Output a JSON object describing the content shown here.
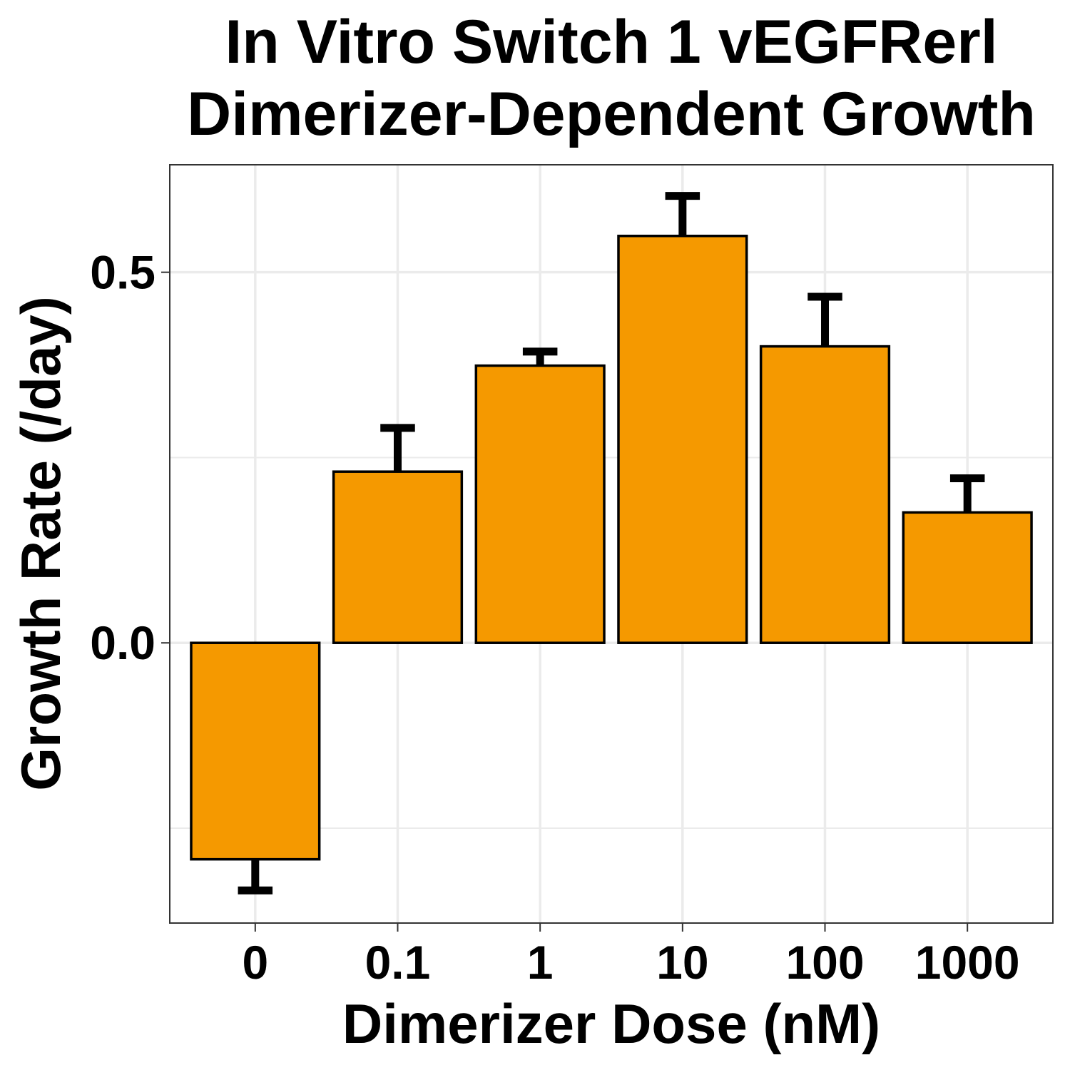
{
  "chart_data": {
    "type": "bar",
    "title": [
      "In Vitro Switch 1 vEGFRerl",
      "Dimerizer-Dependent Growth"
    ],
    "xlabel": "Dimerizer Dose (nM)",
    "ylabel": "Growth Rate (/day)",
    "categories": [
      "0",
      "0.1",
      "1",
      "10",
      "100",
      "1000"
    ],
    "values": [
      -0.292,
      0.231,
      0.374,
      0.549,
      0.4,
      0.176
    ],
    "error_upper": [
      -0.334,
      0.29,
      0.393,
      0.603,
      0.467,
      0.222
    ],
    "ylim": [
      -0.378,
      0.645
    ],
    "yticks": [
      0.0,
      0.5
    ],
    "ytick_labels": [
      "0.0",
      "0.5"
    ],
    "grid": true,
    "colors": {
      "bar_fill": "#F59900",
      "bar_stroke": "#000000",
      "grid": "#EBEBEB",
      "panel_border": "#333333"
    }
  }
}
